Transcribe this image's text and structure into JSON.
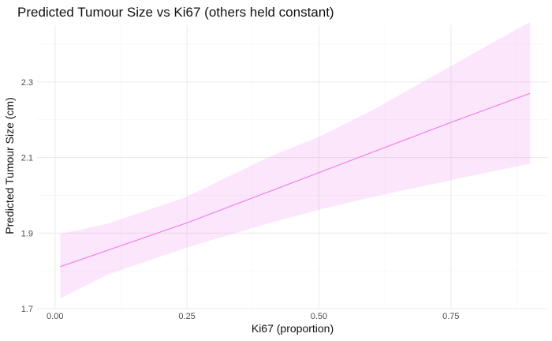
{
  "chart_data": {
    "type": "line",
    "title": "Predicted Tumour Size vs Ki67 (others held constant)",
    "xlabel": "Ki67 (proportion)",
    "ylabel": "Predicted Tumour Size (cm)",
    "xlim": [
      -0.034,
      0.934
    ],
    "ylim": [
      1.7,
      2.45
    ],
    "x_ticks": [
      0.0,
      0.25,
      0.5,
      0.75
    ],
    "x_tick_labels": [
      "0.00",
      "0.25",
      "0.50",
      "0.75"
    ],
    "y_ticks": [
      1.7,
      1.9,
      2.1,
      2.3
    ],
    "y_tick_labels": [
      "1.7",
      "1.9",
      "2.1",
      "2.3"
    ],
    "grid": true,
    "legend": "none",
    "series": [
      {
        "type": "line",
        "color": "#ee82ee",
        "x": [
          0.01,
          0.25,
          0.5,
          0.75,
          0.9
        ],
        "y": [
          1.811,
          1.927,
          2.06,
          2.193,
          2.27
        ]
      },
      {
        "type": "ribbon",
        "color": "#ee82ee",
        "opacity": 0.2,
        "x": [
          0.01,
          0.1,
          0.25,
          0.4,
          0.5,
          0.6,
          0.75,
          0.9
        ],
        "lower": [
          1.727,
          1.79,
          1.862,
          1.924,
          1.962,
          1.995,
          2.04,
          2.084
        ],
        "upper": [
          1.898,
          1.925,
          1.996,
          2.098,
          2.155,
          2.224,
          2.342,
          2.459
        ]
      }
    ]
  }
}
